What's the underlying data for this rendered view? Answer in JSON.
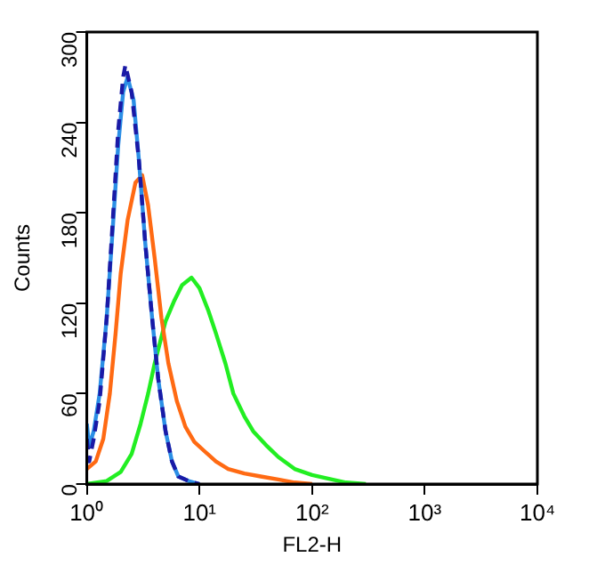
{
  "chart_data": {
    "type": "line",
    "xlabel": "FL2-H",
    "ylabel": "Counts",
    "log": "x",
    "xlim": [
      1,
      10000
    ],
    "xticks": [
      {
        "value": 1,
        "label": "10⁰"
      },
      {
        "value": 10,
        "label": "10¹"
      },
      {
        "value": 100,
        "label": "10²"
      },
      {
        "value": 1000,
        "label": "10³"
      },
      {
        "value": 10000,
        "label": "10⁴"
      }
    ],
    "ylim": [
      0,
      300
    ],
    "yticks": [
      0,
      60,
      120,
      180,
      240,
      300
    ],
    "grid": false,
    "legend": false,
    "marker": "none",
    "series": [
      {
        "color": "#1a1aa6",
        "line_style": "dashed",
        "x": [
          1,
          1.05,
          1.15,
          1.3,
          1.5,
          1.7,
          1.9,
          2.1,
          2.2,
          2.5,
          2.9,
          3.3,
          3.8,
          4.3,
          5,
          5.7,
          6.5,
          8,
          10
        ],
        "values": [
          30,
          15,
          30,
          55,
          110,
          175,
          235,
          270,
          278,
          260,
          215,
          160,
          110,
          70,
          35,
          15,
          5,
          2,
          0
        ]
      },
      {
        "color": "#2b8fe6",
        "line_style": "solid",
        "x": [
          1,
          1.05,
          1.15,
          1.3,
          1.5,
          1.7,
          1.9,
          2.1,
          2.3,
          2.6,
          2.9,
          3.3,
          3.8,
          4.3,
          5,
          5.7,
          6.5,
          8,
          10
        ],
        "values": [
          40,
          25,
          35,
          60,
          110,
          170,
          225,
          260,
          270,
          255,
          215,
          160,
          110,
          70,
          35,
          15,
          5,
          2,
          0
        ]
      },
      {
        "color": "#ff6a13",
        "line_style": "solid",
        "x": [
          1,
          1.2,
          1.4,
          1.6,
          1.8,
          2,
          2.3,
          2.7,
          3.1,
          3.5,
          4,
          4.6,
          5.3,
          6.3,
          7.5,
          9,
          11,
          14,
          18,
          25,
          35,
          50,
          70,
          100
        ],
        "values": [
          10,
          15,
          30,
          60,
          100,
          140,
          175,
          200,
          205,
          185,
          150,
          110,
          80,
          55,
          38,
          28,
          22,
          15,
          10,
          7,
          5,
          3,
          1,
          0
        ]
      },
      {
        "color": "#22ee22",
        "line_style": "solid",
        "x": [
          1,
          1.5,
          2,
          2.5,
          3,
          3.5,
          4,
          4.5,
          5,
          6,
          7,
          8.5,
          10,
          12,
          14,
          17,
          20,
          25,
          30,
          40,
          50,
          70,
          100,
          150,
          200,
          300
        ],
        "values": [
          0,
          2,
          8,
          20,
          40,
          60,
          80,
          95,
          108,
          122,
          132,
          137,
          130,
          115,
          100,
          80,
          60,
          45,
          35,
          25,
          18,
          10,
          6,
          3,
          1,
          0
        ]
      }
    ]
  }
}
